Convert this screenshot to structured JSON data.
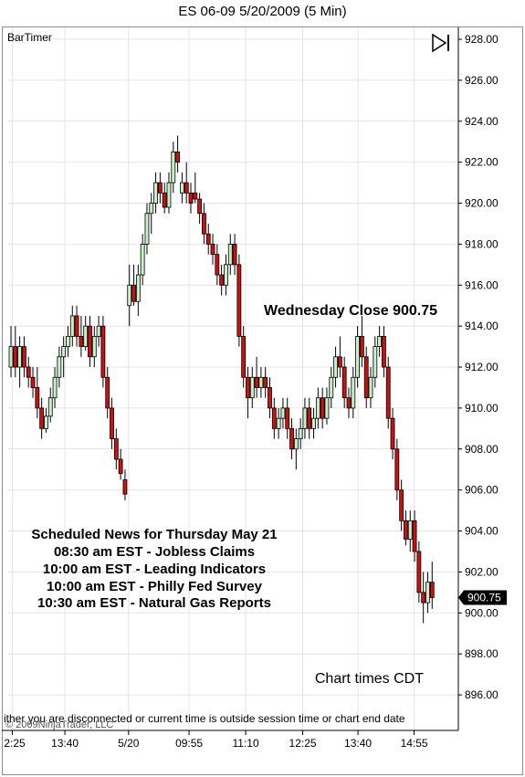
{
  "window": {
    "title": "ES 06-09  5/20/2009 (5 Min)"
  },
  "indicator": {
    "name": "BarTimer"
  },
  "toolbar": {
    "play_icon": "play-pause-icon"
  },
  "status_message": "ither you are disconnected or current time is outside session time or chart end date",
  "copyright": "© 2009NinjaTrader, LLC",
  "chart_times_label": "Chart times CDT",
  "annotation": {
    "text": "Wednesday Close 900.75",
    "price": 913.5
  },
  "news": {
    "lines": [
      "Scheduled News for Thursday May 21",
      "08:30 am EST - Jobless Claims",
      "10:00 am EST - Leading Indicators",
      "10:00 am EST - Philly Fed Survey",
      "10:30 am EST - Natural Gas Reports"
    ]
  },
  "last_price": {
    "label": "900.75",
    "value": 900.75
  },
  "colors": {
    "up": "#c8f0c8",
    "down": "#cc1111",
    "wick": "#000000",
    "grid": "#e4e4e4",
    "tag_bg": "#000000",
    "tag_fg": "#ffffff"
  },
  "chart_data": {
    "type": "candlestick",
    "title": "ES 06-09  5/20/2009 (5 Min)",
    "ylim": [
      895,
      928.5
    ],
    "y_ticks": [
      "928.00",
      "926.00",
      "924.00",
      "922.00",
      "920.00",
      "918.00",
      "916.00",
      "914.00",
      "912.00",
      "910.00",
      "908.00",
      "906.00",
      "904.00",
      "902.00",
      "900.00",
      "898.00",
      "896.00"
    ],
    "x_ticks": [
      {
        "label": "2:25",
        "bar": 0.3
      },
      {
        "label": "13:40",
        "bar": 12.3
      },
      {
        "label": "5/20",
        "bar": 26.8
      },
      {
        "label": "09:55",
        "bar": 40.6
      },
      {
        "label": "11:10",
        "bar": 53.5
      },
      {
        "label": "12:25",
        "bar": 66.5
      },
      {
        "label": "13:40",
        "bar": 79.1
      },
      {
        "label": "14:55",
        "bar": 91.9
      }
    ],
    "bars": [
      {
        "o": 912,
        "h": 914,
        "l": 911.5,
        "c": 913
      },
      {
        "o": 913,
        "h": 914,
        "l": 911.5,
        "c": 912
      },
      {
        "o": 912,
        "h": 913.5,
        "l": 911,
        "c": 913
      },
      {
        "o": 913,
        "h": 913.5,
        "l": 911.5,
        "c": 912
      },
      {
        "o": 912,
        "h": 912.5,
        "l": 911,
        "c": 911.5
      },
      {
        "o": 911.5,
        "h": 912,
        "l": 910.5,
        "c": 911
      },
      {
        "o": 911,
        "h": 912,
        "l": 909.5,
        "c": 910
      },
      {
        "o": 910,
        "h": 910.5,
        "l": 908.5,
        "c": 909
      },
      {
        "o": 909,
        "h": 910,
        "l": 908.8,
        "c": 909.6
      },
      {
        "o": 909.6,
        "h": 911,
        "l": 909.3,
        "c": 910.5
      },
      {
        "o": 910.5,
        "h": 912,
        "l": 910,
        "c": 911.5
      },
      {
        "o": 911.5,
        "h": 913,
        "l": 911,
        "c": 912.5
      },
      {
        "o": 912.5,
        "h": 913.5,
        "l": 911.5,
        "c": 913
      },
      {
        "o": 913,
        "h": 914,
        "l": 912.5,
        "c": 913.5
      },
      {
        "o": 913.5,
        "h": 915,
        "l": 913,
        "c": 914.5
      },
      {
        "o": 914.5,
        "h": 915,
        "l": 913,
        "c": 913.5
      },
      {
        "o": 913.5,
        "h": 914.5,
        "l": 912.5,
        "c": 913
      },
      {
        "o": 913,
        "h": 914.5,
        "l": 912.8,
        "c": 914
      },
      {
        "o": 914,
        "h": 914.5,
        "l": 912,
        "c": 912.5
      },
      {
        "o": 912.5,
        "h": 914,
        "l": 912,
        "c": 913.5
      },
      {
        "o": 913.5,
        "h": 914.5,
        "l": 913,
        "c": 914
      },
      {
        "o": 914,
        "h": 914.5,
        "l": 911,
        "c": 911.5
      },
      {
        "o": 911.5,
        "h": 912,
        "l": 909.5,
        "c": 910
      },
      {
        "o": 910,
        "h": 910.5,
        "l": 908,
        "c": 908.5
      },
      {
        "o": 908.5,
        "h": 909,
        "l": 907,
        "c": 907.5
      },
      {
        "o": 907.5,
        "h": 908,
        "l": 906.5,
        "c": 906.8
      },
      {
        "o": 906.5,
        "h": 907,
        "l": 905.5,
        "c": 905.8
      },
      {
        "o": 915,
        "h": 917,
        "l": 914,
        "c": 916
      },
      {
        "o": 916,
        "h": 917,
        "l": 915,
        "c": 915.2
      },
      {
        "o": 915.2,
        "h": 917,
        "l": 914.5,
        "c": 916.5
      },
      {
        "o": 916.5,
        "h": 918.5,
        "l": 916,
        "c": 918
      },
      {
        "o": 918,
        "h": 920,
        "l": 917.5,
        "c": 919.5
      },
      {
        "o": 919.5,
        "h": 920.5,
        "l": 918.5,
        "c": 920
      },
      {
        "o": 920,
        "h": 921.5,
        "l": 919.5,
        "c": 921
      },
      {
        "o": 921,
        "h": 921.5,
        "l": 920,
        "c": 920.5
      },
      {
        "o": 920.5,
        "h": 921,
        "l": 919.5,
        "c": 919.8
      },
      {
        "o": 919.8,
        "h": 921.5,
        "l": 919.5,
        "c": 921
      },
      {
        "o": 921,
        "h": 923,
        "l": 920.5,
        "c": 922.5
      },
      {
        "o": 922.5,
        "h": 923.3,
        "l": 921.5,
        "c": 922
      },
      {
        "o": 920.5,
        "h": 921.5,
        "l": 920,
        "c": 921
      },
      {
        "o": 921,
        "h": 922,
        "l": 920,
        "c": 920.5
      },
      {
        "o": 920.5,
        "h": 921,
        "l": 919.5,
        "c": 920
      },
      {
        "o": 920.5,
        "h": 921.5,
        "l": 920,
        "c": 920.2
      },
      {
        "o": 920.2,
        "h": 920.5,
        "l": 919,
        "c": 919.5
      },
      {
        "o": 919.5,
        "h": 920,
        "l": 918,
        "c": 918.5
      },
      {
        "o": 918.5,
        "h": 919,
        "l": 917.5,
        "c": 918
      },
      {
        "o": 918,
        "h": 918.5,
        "l": 917,
        "c": 917.5
      },
      {
        "o": 917.5,
        "h": 918,
        "l": 916,
        "c": 916.5
      },
      {
        "o": 916.5,
        "h": 917,
        "l": 915.5,
        "c": 916
      },
      {
        "o": 916,
        "h": 917.5,
        "l": 915.5,
        "c": 917
      },
      {
        "o": 917,
        "h": 918.5,
        "l": 916.5,
        "c": 918
      },
      {
        "o": 918,
        "h": 918.5,
        "l": 916.5,
        "c": 917
      },
      {
        "o": 917,
        "h": 917.5,
        "l": 913,
        "c": 913.5
      },
      {
        "o": 913.5,
        "h": 914,
        "l": 911,
        "c": 911.5
      },
      {
        "o": 911.5,
        "h": 912,
        "l": 909.5,
        "c": 910.5
      },
      {
        "o": 910.5,
        "h": 912,
        "l": 910,
        "c": 911.5
      },
      {
        "o": 911.5,
        "h": 912.5,
        "l": 910.5,
        "c": 911
      },
      {
        "o": 911,
        "h": 912,
        "l": 910.5,
        "c": 911.5
      },
      {
        "o": 911.5,
        "h": 912,
        "l": 910.5,
        "c": 911
      },
      {
        "o": 911,
        "h": 911.5,
        "l": 909.5,
        "c": 910
      },
      {
        "o": 910,
        "h": 910.5,
        "l": 908.5,
        "c": 909
      },
      {
        "o": 909,
        "h": 910,
        "l": 908.5,
        "c": 909.5
      },
      {
        "o": 909.5,
        "h": 910.5,
        "l": 909,
        "c": 910
      },
      {
        "o": 910,
        "h": 910.5,
        "l": 908.5,
        "c": 909
      },
      {
        "o": 909,
        "h": 909.5,
        "l": 907.5,
        "c": 908
      },
      {
        "o": 908,
        "h": 909,
        "l": 907,
        "c": 908.5
      },
      {
        "o": 908.5,
        "h": 909.5,
        "l": 908,
        "c": 909
      },
      {
        "o": 909,
        "h": 910.5,
        "l": 908.5,
        "c": 910
      },
      {
        "o": 910,
        "h": 910.5,
        "l": 908.5,
        "c": 909
      },
      {
        "o": 909,
        "h": 910,
        "l": 908.5,
        "c": 909.5
      },
      {
        "o": 909.5,
        "h": 911,
        "l": 909,
        "c": 910.5
      },
      {
        "o": 910.5,
        "h": 911,
        "l": 909,
        "c": 909.5
      },
      {
        "o": 909.5,
        "h": 911,
        "l": 909.2,
        "c": 910.5
      },
      {
        "o": 910.5,
        "h": 912,
        "l": 910,
        "c": 911.5
      },
      {
        "o": 911.5,
        "h": 913,
        "l": 911,
        "c": 912.5
      },
      {
        "o": 912.5,
        "h": 913.5,
        "l": 911.5,
        "c": 912
      },
      {
        "o": 912,
        "h": 912.5,
        "l": 910,
        "c": 910.5
      },
      {
        "o": 910.5,
        "h": 911,
        "l": 909.5,
        "c": 910
      },
      {
        "o": 910,
        "h": 912,
        "l": 909.5,
        "c": 911.5
      },
      {
        "o": 911.5,
        "h": 914,
        "l": 911,
        "c": 913.5
      },
      {
        "o": 913.5,
        "h": 914.5,
        "l": 912,
        "c": 912.5
      },
      {
        "o": 912.5,
        "h": 913,
        "l": 910,
        "c": 910.5
      },
      {
        "o": 910.5,
        "h": 912,
        "l": 910,
        "c": 911.5
      },
      {
        "o": 911.5,
        "h": 913.5,
        "l": 911,
        "c": 913
      },
      {
        "o": 913,
        "h": 914,
        "l": 912.5,
        "c": 913.5
      },
      {
        "o": 913.5,
        "h": 914,
        "l": 911.5,
        "c": 912
      },
      {
        "o": 912,
        "h": 912.5,
        "l": 909,
        "c": 909.5
      },
      {
        "o": 909.5,
        "h": 910,
        "l": 907.5,
        "c": 908
      },
      {
        "o": 908,
        "h": 908.5,
        "l": 905.5,
        "c": 906
      },
      {
        "o": 906,
        "h": 906.5,
        "l": 904,
        "c": 904.5
      },
      {
        "o": 904.5,
        "h": 905,
        "l": 903.3,
        "c": 903.6
      },
      {
        "o": 903.6,
        "h": 905,
        "l": 903,
        "c": 904.5
      },
      {
        "o": 904.5,
        "h": 905,
        "l": 902.5,
        "c": 903
      },
      {
        "o": 903,
        "h": 903.5,
        "l": 900.5,
        "c": 901
      },
      {
        "o": 901,
        "h": 902,
        "l": 899.5,
        "c": 900.5
      },
      {
        "o": 900.5,
        "h": 902,
        "l": 900,
        "c": 901.5
      },
      {
        "o": 901.5,
        "h": 902.5,
        "l": 900.2,
        "c": 900.75
      }
    ]
  }
}
